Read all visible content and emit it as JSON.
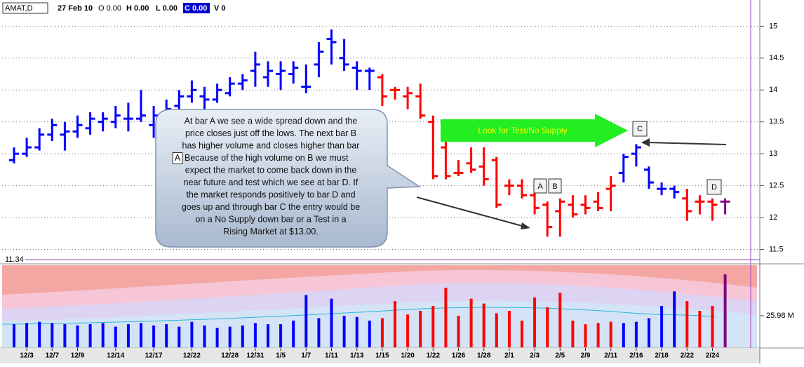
{
  "header": {
    "symbol": "AMAT,D",
    "date": "27 Feb 10",
    "open": "O 0.00",
    "high": "H 0.00",
    "low": "L 0.00",
    "close": "C 0.00",
    "volume": "V 0"
  },
  "chart_data": {
    "type": "ohlc",
    "categories": [
      null,
      "12/3",
      null,
      "12/7",
      null,
      "12/9",
      null,
      null,
      "12/14",
      null,
      null,
      "12/17",
      null,
      null,
      "12/22",
      null,
      null,
      "12/28",
      null,
      "12/31",
      null,
      "1/5",
      null,
      "1/7",
      null,
      "1/11",
      null,
      "1/13",
      null,
      "1/15",
      null,
      "1/20",
      null,
      "1/22",
      null,
      "1/26",
      null,
      "1/28",
      null,
      "2/1",
      null,
      "2/3",
      null,
      "2/5",
      null,
      "2/9",
      null,
      "2/11",
      null,
      "2/16",
      null,
      "2/18",
      null,
      "2/22",
      null,
      "2/24",
      null
    ],
    "open": [
      12.9,
      13.0,
      13.1,
      13.3,
      13.3,
      13.35,
      13.4,
      13.5,
      13.5,
      13.55,
      13.55,
      13.45,
      13.6,
      13.75,
      13.9,
      13.9,
      13.85,
      13.95,
      14.1,
      14.3,
      14.2,
      14.25,
      14.25,
      14.05,
      14.4,
      14.8,
      14.5,
      14.35,
      14.3,
      14.2,
      14.0,
      13.9,
      13.9,
      13.5,
      13.1,
      12.7,
      12.85,
      12.8,
      12.9,
      12.5,
      12.5,
      12.35,
      12.2,
      12.1,
      12.2,
      12.2,
      12.25,
      12.45,
      12.7,
      13.0,
      12.75,
      12.45,
      12.45,
      12.3,
      12.25,
      12.25,
      12.25
    ],
    "high": [
      13.1,
      13.25,
      13.4,
      13.55,
      13.5,
      13.6,
      13.65,
      13.65,
      13.75,
      13.8,
      14.0,
      13.75,
      13.85,
      14.0,
      14.15,
      14.05,
      14.1,
      14.2,
      14.25,
      14.6,
      14.45,
      14.45,
      14.45,
      14.4,
      14.75,
      14.95,
      14.8,
      14.45,
      14.35,
      14.25,
      14.05,
      14.05,
      14.1,
      13.6,
      13.2,
      12.9,
      13.1,
      13.1,
      12.95,
      12.6,
      12.6,
      12.45,
      12.25,
      12.3,
      12.35,
      12.35,
      12.4,
      12.65,
      13.0,
      13.15,
      12.8,
      12.55,
      12.5,
      12.45,
      12.35,
      12.3,
      12.3
    ],
    "low": [
      12.85,
      12.95,
      13.05,
      13.2,
      13.05,
      13.25,
      13.3,
      13.35,
      13.4,
      13.35,
      13.5,
      13.25,
      13.45,
      13.65,
      13.8,
      13.7,
      13.8,
      13.9,
      14.0,
      14.05,
      14.05,
      14.0,
      14.1,
      13.95,
      14.2,
      14.4,
      14.3,
      14.0,
      14.0,
      13.75,
      13.85,
      13.7,
      13.55,
      12.6,
      12.6,
      12.65,
      12.7,
      12.5,
      12.15,
      12.35,
      12.3,
      12.05,
      11.7,
      11.7,
      12.0,
      12.05,
      12.1,
      12.1,
      12.55,
      12.8,
      12.45,
      12.35,
      12.3,
      11.95,
      12.05,
      11.95,
      12.05
    ],
    "close": [
      13.0,
      13.1,
      13.3,
      13.45,
      13.35,
      13.45,
      13.55,
      13.55,
      13.6,
      13.55,
      13.6,
      13.6,
      13.7,
      13.9,
      14.0,
      13.85,
      14.0,
      14.1,
      14.15,
      14.4,
      14.3,
      14.3,
      14.35,
      14.05,
      14.6,
      14.75,
      14.4,
      14.3,
      14.3,
      13.9,
      14.0,
      13.95,
      13.6,
      12.65,
      12.65,
      12.7,
      12.75,
      12.6,
      12.2,
      12.5,
      12.35,
      12.15,
      11.85,
      12.25,
      12.05,
      12.15,
      12.15,
      12.5,
      12.95,
      13.1,
      12.55,
      12.45,
      12.4,
      12.1,
      12.25,
      12.2,
      12.25
    ],
    "colors": [
      "#0000ff",
      "#0000ff",
      "#0000ff",
      "#0000ff",
      "#0000ff",
      "#0000ff",
      "#0000ff",
      "#0000ff",
      "#0000ff",
      "#0000ff",
      "#0000ff",
      "#0000ff",
      "#0000ff",
      "#0000ff",
      "#0000ff",
      "#0000ff",
      "#0000ff",
      "#0000ff",
      "#0000ff",
      "#0000ff",
      "#0000ff",
      "#0000ff",
      "#0000ff",
      "#0000ff",
      "#0000ff",
      "#0000ff",
      "#0000ff",
      "#0000ff",
      "#0000ff",
      "#ff0000",
      "#ff0000",
      "#ff0000",
      "#ff0000",
      "#ff0000",
      "#ff0000",
      "#ff0000",
      "#ff0000",
      "#ff0000",
      "#ff0000",
      "#ff0000",
      "#ff0000",
      "#ff0000",
      "#ff0000",
      "#ff0000",
      "#ff0000",
      "#ff0000",
      "#ff0000",
      "#ff0000",
      "#0000ff",
      "#0000ff",
      "#0000ff",
      "#0000ff",
      "#0000ff",
      "#ff0000",
      "#ff0000",
      "#ff0000",
      "#800080"
    ],
    "ylim": [
      11.34,
      15.4
    ],
    "yticks": [
      11.5,
      12,
      12.5,
      13,
      13.5,
      14,
      14.5,
      15
    ],
    "grid": true,
    "reference_line": 11.34,
    "volume": {
      "values": [
        19,
        20,
        21,
        20,
        19,
        18,
        19,
        20,
        17,
        19,
        20,
        18,
        19,
        17,
        21,
        18,
        16,
        17,
        18,
        20,
        19,
        19,
        22,
        43,
        24,
        40,
        26,
        25,
        22,
        24,
        38,
        27,
        30,
        34,
        49,
        26,
        40,
        36,
        28,
        30,
        22,
        41,
        33,
        45,
        22,
        19,
        20,
        21,
        20,
        21,
        24,
        34,
        46,
        38,
        30,
        34,
        60
      ],
      "ylim": [
        0,
        67.5
      ],
      "yticks": [
        {
          "value": 25.98,
          "label": "25.98 M"
        }
      ]
    },
    "annotations": {
      "callout": [
        "At bar A we see a wide spread down and the",
        "price closes just off the lows. The next bar B",
        "has higher volume and closes higher than bar",
        "Because of the high volume on B we must",
        "expect the market to come back down in the",
        "near future and test which we see at bar D. If",
        "the market responds positively to bar D and",
        "goes up and through bar C the entry would be",
        "on a No Supply down bar or a Test in a",
        "Rising Market at $13.00."
      ],
      "callout_inline_label": "A",
      "arrow_text": "Look for Test/No Supply",
      "bar_labels": [
        "A",
        "B",
        "C",
        "D"
      ]
    }
  }
}
